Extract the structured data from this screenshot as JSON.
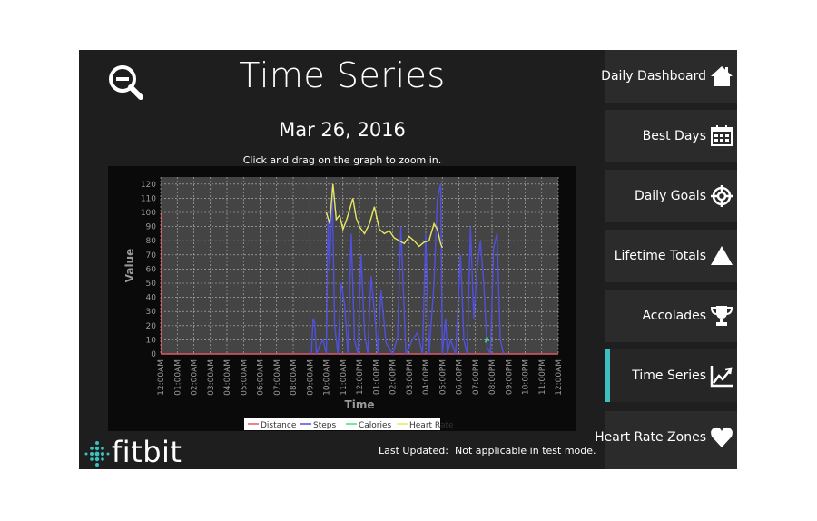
{
  "header": {
    "title": "Time Series",
    "date": "Mar 26, 2016",
    "hint": "Click and drag on the graph to zoom in.",
    "zoom_icon": "zoom-out-icon"
  },
  "footer": {
    "logo_text": "fitbit",
    "updated_label": "Last Updated:",
    "updated_value": "Not applicable in test mode."
  },
  "nav": {
    "items": [
      {
        "label": "Daily Dashboard",
        "icon": "home-icon"
      },
      {
        "label": "Best Days",
        "icon": "calendar-icon"
      },
      {
        "label": "Daily Goals",
        "icon": "target-icon"
      },
      {
        "label": "Lifetime Totals",
        "icon": "triangle-icon"
      },
      {
        "label": "Accolades",
        "icon": "trophy-icon"
      },
      {
        "label": "Time Series",
        "icon": "trend-chart-icon"
      },
      {
        "label": "Heart Rate Zones",
        "icon": "heart-icon"
      }
    ],
    "active": "Time Series",
    "accent": "#3cc0c0"
  },
  "chart_data": {
    "type": "line",
    "xlabel": "Time",
    "ylabel": "Value",
    "ylim": [
      0,
      125
    ],
    "yticks": [
      0,
      10,
      20,
      30,
      40,
      50,
      60,
      70,
      80,
      90,
      100,
      110,
      120
    ],
    "xticks": [
      "12:00AM",
      "01:00AM",
      "02:00AM",
      "03:00AM",
      "04:00AM",
      "05:00AM",
      "06:00AM",
      "07:00AM",
      "08:00AM",
      "09:00AM",
      "10:00AM",
      "11:00AM",
      "12:00PM",
      "01:00PM",
      "02:00PM",
      "03:00PM",
      "04:00PM",
      "05:00PM",
      "06:00PM",
      "07:00PM",
      "08:00PM",
      "09:00PM",
      "10:00PM",
      "11:00PM",
      "12:00AM"
    ],
    "xlim": [
      0,
      24
    ],
    "grid": true,
    "legend_position": "bottom",
    "series": [
      {
        "name": "Distance",
        "color": "#e05a68",
        "x": [
          0.05,
          0.05,
          0.06,
          24
        ],
        "y": [
          100,
          0,
          0,
          0
        ]
      },
      {
        "name": "Steps",
        "color": "#5050e0",
        "x": [
          9.1,
          9.2,
          9.3,
          9.4,
          9.6,
          9.8,
          10.0,
          10.1,
          10.2,
          10.35,
          10.5,
          10.7,
          10.9,
          11.1,
          11.3,
          11.5,
          11.7,
          11.9,
          12.1,
          12.3,
          12.5,
          12.7,
          12.9,
          13.1,
          13.3,
          13.6,
          14.0,
          14.3,
          14.5,
          14.8,
          15.2,
          15.5,
          15.8,
          16.0,
          16.2,
          16.5,
          16.7,
          16.9,
          17.0,
          17.2,
          17.3,
          17.5,
          17.8,
          18.1,
          18.3,
          18.5,
          18.7,
          18.9,
          19.1,
          19.3,
          19.5,
          19.7,
          19.9,
          20.1,
          20.3,
          20.5,
          20.7
        ],
        "y": [
          0,
          25,
          22,
          0,
          6,
          10,
          0,
          95,
          60,
          118,
          20,
          0,
          50,
          35,
          0,
          85,
          10,
          0,
          70,
          15,
          0,
          55,
          30,
          0,
          45,
          8,
          0,
          12,
          90,
          0,
          10,
          15,
          0,
          85,
          0,
          50,
          110,
          120,
          0,
          25,
          0,
          10,
          0,
          70,
          10,
          0,
          90,
          25,
          60,
          80,
          50,
          5,
          0,
          75,
          85,
          10,
          0
        ]
      },
      {
        "name": "Calories",
        "color": "#44dd88",
        "x": [
          19.6,
          19.7,
          19.8
        ],
        "y": [
          8,
          12,
          9
        ]
      },
      {
        "name": "Heart Rate",
        "color": "#e8e860",
        "x": [
          10.0,
          10.2,
          10.4,
          10.6,
          10.8,
          11.0,
          11.2,
          11.4,
          11.6,
          11.8,
          12.0,
          12.3,
          12.6,
          12.9,
          13.2,
          13.5,
          13.8,
          14.1,
          14.4,
          14.7,
          15.0,
          15.3,
          15.6,
          15.9,
          16.2,
          16.5,
          16.7,
          16.9,
          17.0
        ],
        "y": [
          100,
          92,
          120,
          95,
          98,
          88,
          94,
          102,
          110,
          96,
          90,
          85,
          92,
          104,
          88,
          85,
          87,
          82,
          80,
          78,
          83,
          80,
          76,
          79,
          80,
          92,
          88,
          78,
          75
        ]
      }
    ]
  }
}
